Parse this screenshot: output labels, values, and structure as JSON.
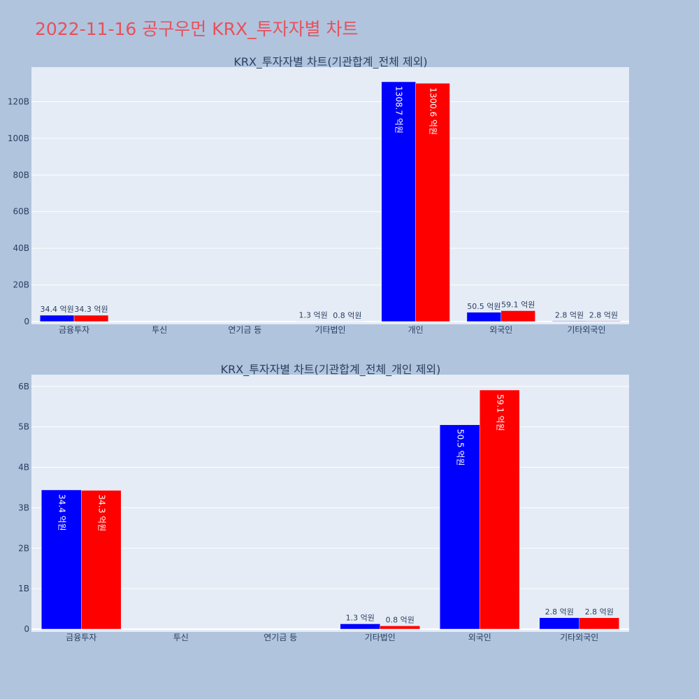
{
  "page_title": "2022-11-16 공구우먼 KRX_투자자별 차트",
  "colors": {
    "series_a": "#0000ff",
    "series_b": "#ff0000"
  },
  "chart_data": [
    {
      "type": "bar",
      "title": "KRX_투자자별 차트(기관합계_전체 제외)",
      "categories": [
        "금융투자",
        "투신",
        "연기금 등",
        "기타법인",
        "개인",
        "외국인",
        "기타외국인"
      ],
      "ylim": [
        0,
        132000000000
      ],
      "yticks": [
        0,
        20000000000,
        40000000000,
        60000000000,
        80000000000,
        100000000000,
        120000000000
      ],
      "ytick_labels": [
        "0",
        "20B",
        "40B",
        "60B",
        "80B",
        "100B",
        "120B"
      ],
      "grid": true,
      "series": [
        {
          "values": [
            3440000000,
            0,
            0,
            130000000,
            130870000000,
            5050000000,
            280000000
          ],
          "labels": [
            "34.4 억원",
            "",
            "",
            "1.3 억원",
            "1308.7 억원",
            "50.5 억원",
            "2.8 억원"
          ]
        },
        {
          "values": [
            3430000000,
            0,
            0,
            80000000,
            130060000000,
            5910000000,
            280000000
          ],
          "labels": [
            "34.3 억원",
            "",
            "",
            "0.8 억원",
            "1300.6 억원",
            "59.1 억원",
            "2.8 억원"
          ]
        }
      ]
    },
    {
      "type": "bar",
      "title": "KRX_투자자별 차트(기관합계_전체_개인 제외)",
      "categories": [
        "금융투자",
        "투신",
        "연기금 등",
        "기타법인",
        "외국인",
        "기타외국인"
      ],
      "ylim": [
        0,
        6200000000
      ],
      "yticks": [
        0,
        1000000000,
        2000000000,
        3000000000,
        4000000000,
        5000000000,
        6000000000
      ],
      "ytick_labels": [
        "0",
        "1B",
        "2B",
        "3B",
        "4B",
        "5B",
        "6B"
      ],
      "grid": true,
      "series": [
        {
          "values": [
            3440000000,
            0,
            0,
            130000000,
            5050000000,
            280000000
          ],
          "labels": [
            "34.4 억원",
            "",
            "",
            "1.3 억원",
            "50.5 억원",
            "2.8 억원"
          ]
        },
        {
          "values": [
            3430000000,
            0,
            0,
            80000000,
            5910000000,
            280000000
          ],
          "labels": [
            "34.3 억원",
            "",
            "",
            "0.8 억원",
            "59.1 억원",
            "2.8 억원"
          ]
        }
      ]
    }
  ]
}
